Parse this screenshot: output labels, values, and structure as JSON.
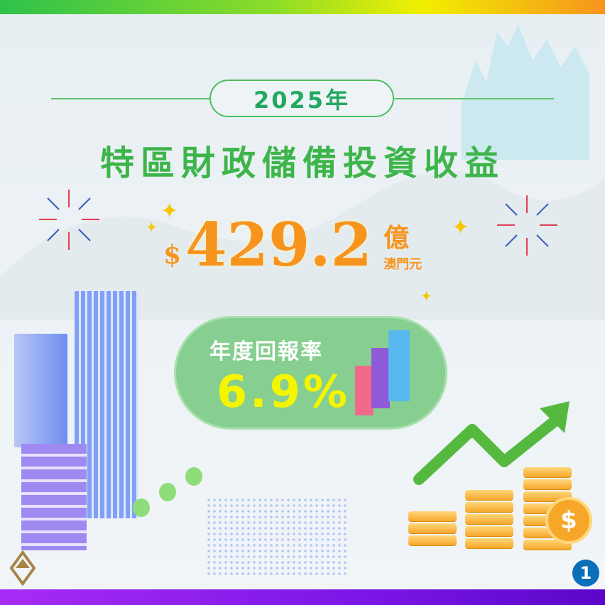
{
  "header": {
    "year": "2025年",
    "title": "特區財政儲備投資收益"
  },
  "amount": {
    "currency": "$",
    "value": "429.2",
    "unit": "億",
    "currency_name": "澳門元"
  },
  "rate": {
    "label": "年度回報率",
    "value": "6.9%"
  },
  "page_number": "1",
  "colors": {
    "green": "#3db54a",
    "orange": "#f7941d",
    "yellow": "#f5f500",
    "pill": "#86cf90",
    "purple": "#7b16e6"
  },
  "icons": [
    "sparkle-icon",
    "firework-icon",
    "bar-chart-icon",
    "up-arrow-icon",
    "coin-stack-icon",
    "dollar-coin-icon",
    "building-icon",
    "tree-icon",
    "logo-icon"
  ]
}
